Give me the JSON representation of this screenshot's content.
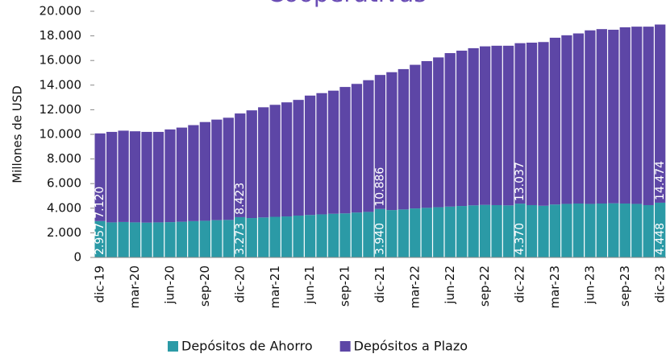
{
  "chart_data": {
    "type": "stacked_bar",
    "title": "Cooperativas",
    "y_label": "Millones de USD",
    "categories": [
      "dic-19",
      null,
      null,
      "mar-20",
      null,
      null,
      "jun-20",
      null,
      null,
      "sep-20",
      null,
      null,
      "dic-20",
      null,
      null,
      "mar-21",
      null,
      null,
      "jun-21",
      null,
      null,
      "sep-21",
      null,
      null,
      "dic-21",
      null,
      null,
      "mar-22",
      null,
      null,
      "jun-22",
      null,
      null,
      "sep-22",
      null,
      null,
      "dic-22",
      null,
      null,
      "mar-23",
      null,
      null,
      "jun-23",
      null,
      null,
      "sep-23",
      null,
      null,
      "dic-23"
    ],
    "series": [
      {
        "name": "Depósitos de Ahorro",
        "color": "#2b9aa6",
        "values": [
          2957,
          2850,
          2880,
          2850,
          2830,
          2850,
          2870,
          2900,
          2950,
          2980,
          3030,
          3050,
          3273,
          3200,
          3250,
          3300,
          3330,
          3400,
          3450,
          3500,
          3550,
          3580,
          3650,
          3700,
          3940,
          3850,
          3900,
          3980,
          4030,
          4080,
          4130,
          4180,
          4230,
          4270,
          4250,
          4230,
          4370,
          4250,
          4200,
          4300,
          4350,
          4380,
          4350,
          4380,
          4400,
          4380,
          4350,
          4250,
          4448
        ],
        "value_labels": [
          "2.957",
          null,
          null,
          null,
          null,
          null,
          null,
          null,
          null,
          null,
          null,
          null,
          "3.273",
          null,
          null,
          null,
          null,
          null,
          null,
          null,
          null,
          null,
          null,
          null,
          "3.940",
          null,
          null,
          null,
          null,
          null,
          null,
          null,
          null,
          null,
          null,
          null,
          "4.370",
          null,
          null,
          null,
          null,
          null,
          null,
          null,
          null,
          null,
          null,
          null,
          "4.448"
        ]
      },
      {
        "name": "Depósitos a Plazo",
        "color": "#5d46a6",
        "values": [
          7120,
          7350,
          7420,
          7400,
          7370,
          7350,
          7530,
          7650,
          7800,
          8020,
          8170,
          8300,
          8423,
          8750,
          8950,
          9100,
          9270,
          9400,
          9700,
          9850,
          10000,
          10270,
          10450,
          10700,
          10886,
          11200,
          11400,
          11670,
          11920,
          12170,
          12470,
          12620,
          12770,
          12880,
          12950,
          12970,
          13037,
          13200,
          13300,
          13550,
          13700,
          13820,
          14100,
          14170,
          14100,
          14320,
          14400,
          14500,
          14474
        ],
        "value_labels": [
          "7.120",
          null,
          null,
          null,
          null,
          null,
          null,
          null,
          null,
          null,
          null,
          null,
          "8.423",
          null,
          null,
          null,
          null,
          null,
          null,
          null,
          null,
          null,
          null,
          null,
          "10.886",
          null,
          null,
          null,
          null,
          null,
          null,
          null,
          null,
          null,
          null,
          null,
          "13.037",
          null,
          null,
          null,
          null,
          null,
          null,
          null,
          null,
          null,
          null,
          null,
          "14.474"
        ]
      }
    ],
    "ylim": [
      0,
      20000
    ],
    "yticks": [
      0,
      {
        "value": 2000,
        "label": "2.000"
      },
      {
        "value": 4000,
        "label": "4.000"
      },
      {
        "value": 6000,
        "label": "6.000"
      },
      {
        "value": 8000,
        "label": "8.000"
      },
      {
        "value": 10000,
        "label": "10.000"
      },
      {
        "value": 12000,
        "label": "12.000"
      },
      {
        "value": 14000,
        "label": "14.000"
      },
      {
        "value": 16000,
        "label": "16.000"
      },
      {
        "value": 18000,
        "label": "18.000"
      },
      {
        "value": 20000,
        "label": "20.000"
      }
    ]
  }
}
